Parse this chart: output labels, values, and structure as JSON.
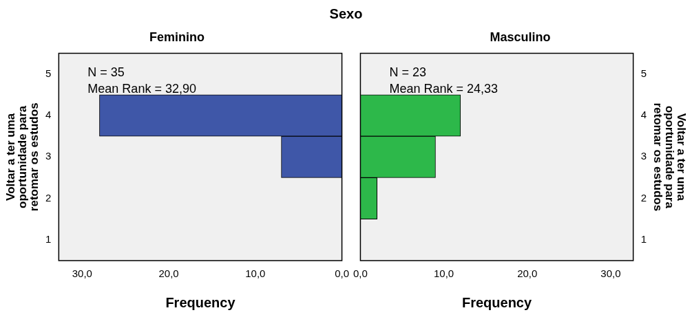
{
  "chart_data": [
    {
      "type": "bar",
      "title": "Sexo",
      "subtitle": "Feminino",
      "orientation": "horizontal",
      "categories": [
        "5",
        "4",
        "3",
        "2",
        "1"
      ],
      "series": [
        {
          "color": "#3f57a8",
          "values": [
            null,
            28,
            7,
            null,
            null
          ]
        }
      ],
      "xlim": [
        32.7,
        0
      ],
      "xticks": [
        {
          "value": 30,
          "label": "30,0"
        },
        {
          "value": 20,
          "label": "20,0"
        },
        {
          "value": 10,
          "label": "10,0"
        },
        {
          "value": 0,
          "label": "0,0"
        }
      ],
      "xlabel": "Frequency",
      "ylabel": "Voltar a ter uma oportunidade para retomar os estudos",
      "annotations": [
        "N = 35",
        "Mean Rank = 32,90"
      ],
      "grid": false,
      "legend": false
    },
    {
      "type": "bar",
      "subtitle": "Masculino",
      "orientation": "horizontal",
      "categories": [
        "5",
        "4",
        "3",
        "2",
        "1"
      ],
      "series": [
        {
          "color": "#2db84a",
          "values": [
            null,
            12,
            9,
            2,
            null
          ]
        }
      ],
      "xlim": [
        0,
        32.7
      ],
      "xticks": [
        {
          "value": 0,
          "label": "0,0"
        },
        {
          "value": 10,
          "label": "10,0"
        },
        {
          "value": 20,
          "label": "20,0"
        },
        {
          "value": 30,
          "label": "30,0"
        }
      ],
      "xlabel": "Frequency",
      "ylabel": "Voltar a ter uma oportunidade para retomar os estudos",
      "annotations": [
        "N = 23",
        "Mean Rank = 24,33"
      ],
      "grid": false,
      "legend": false
    }
  ]
}
